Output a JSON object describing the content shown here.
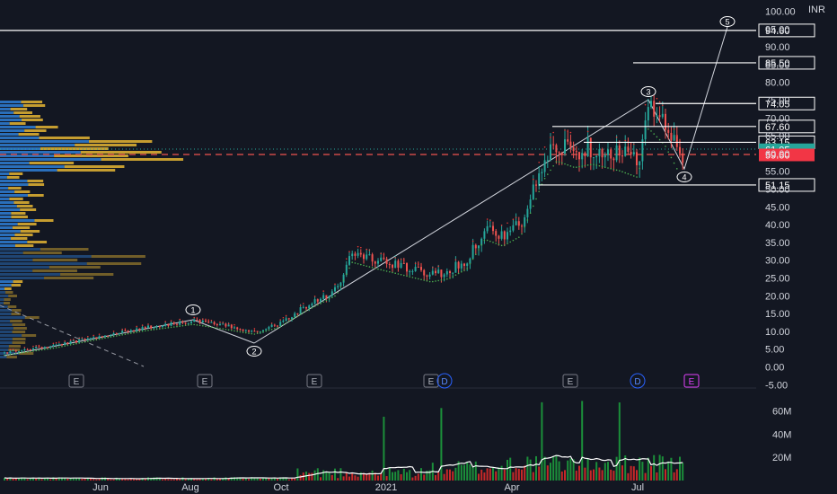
{
  "chart_data": {
    "type": "candlestick",
    "currency": "INR",
    "price_axis": {
      "ticks": [
        "100.00",
        "95.00",
        "90.00",
        "85.00",
        "80.00",
        "75.00",
        "70.00",
        "65.00",
        "60.00",
        "55.00",
        "50.00",
        "45.00",
        "40.00",
        "35.00",
        "30.00",
        "25.00",
        "20.00",
        "15.00",
        "10.00",
        "5.00",
        "0.00",
        "-5.00"
      ],
      "ylim": [
        -5,
        100
      ]
    },
    "volume_axis": {
      "ticks": [
        "60M",
        "40M",
        "20M"
      ],
      "ylim": [
        0,
        70
      ]
    },
    "time_axis": {
      "ticks": [
        "Jun",
        "Aug",
        "Oct",
        "2021",
        "Apr",
        "Jul"
      ]
    },
    "levels": [
      {
        "label": "94.60",
        "value": 94.6,
        "style": "box"
      },
      {
        "label": "85.50",
        "value": 85.5,
        "style": "box"
      },
      {
        "label": "74.05",
        "value": 74.05,
        "style": "box"
      },
      {
        "label": "67.60",
        "value": 67.6,
        "style": "box"
      },
      {
        "label": "63.15",
        "value": 63.15,
        "style": "box"
      },
      {
        "label": "51.15",
        "value": 51.15,
        "style": "box"
      }
    ],
    "current_price": {
      "label": "61.05",
      "value": 61.05,
      "color": "#26a69a"
    },
    "poc_price": {
      "label": "59.60",
      "value": 59.6,
      "color": "#f23645"
    },
    "wave_labels": [
      "1",
      "2",
      "3",
      "4",
      "5"
    ],
    "event_markers": [
      {
        "text": "E",
        "type": "earnings"
      },
      {
        "text": "E",
        "type": "earnings"
      },
      {
        "text": "E",
        "type": "earnings"
      },
      {
        "text": "E",
        "type": "earnings"
      },
      {
        "text": "D",
        "type": "dividend"
      },
      {
        "text": "E",
        "type": "earnings"
      },
      {
        "text": "D",
        "type": "dividend"
      },
      {
        "text": "E",
        "type": "earnings-upcoming"
      }
    ],
    "colors": {
      "background": "#131722",
      "up": "#26a69a",
      "down": "#ef5350",
      "volume_up": "#1b8f3a",
      "volume_down": "#c62828",
      "profile_blue": "#2f7fd6",
      "profile_gold": "#e5b533",
      "support": "#4caf50",
      "resistance": "#e53935"
    }
  }
}
